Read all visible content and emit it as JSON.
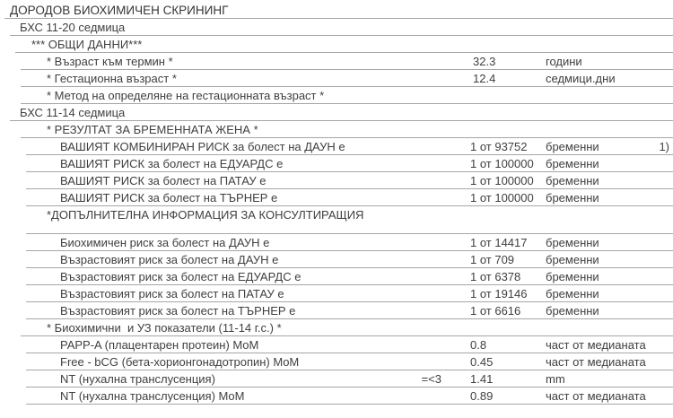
{
  "document": {
    "title": "ДОРОДОВ БИОХИМИЧЕН СКРИНИНГ",
    "language": "bg"
  },
  "rows": [
    {
      "label": "ДОРОДОВ БИОХИМИЧЕН СКРИНИНГ",
      "level": 0
    },
    {
      "label": "БХС 11-20 седмица",
      "level": 1
    },
    {
      "label": "*** ОБЩИ ДАННИ***",
      "level": 2
    },
    {
      "label": "* Възраст към термин *",
      "level": 3,
      "value": "32.3",
      "unit": "години"
    },
    {
      "label": "* Гестационна възраст *",
      "level": 3,
      "value": "12.4",
      "unit": "седмици.дни"
    },
    {
      "label": "* Метод на определяне на гестационната възраст *",
      "level": 3
    },
    {
      "label": "БХС 11-14 седмица",
      "level": 1
    },
    {
      "label": "* РЕЗУЛТАТ ЗА БРЕМЕННАТА ЖЕНА *",
      "level": 3
    },
    {
      "label": "ВАШИЯТ КОМБИНИРАН РИСК за болест на ДАУН е",
      "level": 4,
      "value": "1 от 93752",
      "unit": "бременни",
      "note": "1)"
    },
    {
      "label": "ВАШИЯТ РИСК за болест на ЕДУАРДС е",
      "level": 4,
      "value": "1 от 100000",
      "unit": "бременни"
    },
    {
      "label": "ВАШИЯТ РИСК за болест на ПАТАУ е",
      "level": 4,
      "value": "1 от 100000",
      "unit": "бременни"
    },
    {
      "label": "ВАШИЯТ РИСК за болест на ТЪРНЕР е",
      "level": 4,
      "value": "1 от 100000",
      "unit": "бременни"
    },
    {
      "label": "*ДОПЪЛНИТЕЛНА ИНФОРМАЦИЯ ЗА КОНСУЛТИРАЩИЯ",
      "level": 3
    },
    {
      "label": "",
      "level": 4
    },
    {
      "label": "Биохимичен риск за болест на ДАУН е",
      "level": 4,
      "value": "1 от 14417",
      "unit": "бременни"
    },
    {
      "label": "Възрастовият риск за болест на ДАУН е",
      "level": 4,
      "value": "1 от 709",
      "unit": "бременни"
    },
    {
      "label": "Възрастовият риск за болест на ЕДУАРДС е",
      "level": 4,
      "value": "1 от 6378",
      "unit": "бременни"
    },
    {
      "label": "Възрастовият риск за болест на ПАТАУ е",
      "level": 4,
      "value": "1 от 19146",
      "unit": "бременни"
    },
    {
      "label": "Възрастовият риск за болест на ТЪРНЕР е",
      "level": 4,
      "value": "1 от 6616",
      "unit": "бременни"
    },
    {
      "label": "* Биохимични  и УЗ показатели (11-14 г.с.) *",
      "level": 3
    },
    {
      "label": "PAPP-A (плацентарен протеин) MoM",
      "level": 4,
      "value": "0.8",
      "unit": "част от медианата"
    },
    {
      "label": "Free - bCG (бета-хорионгонадотропин) MoM",
      "level": 4,
      "value": "0.45",
      "unit": "част от медианата"
    },
    {
      "label": "NT (нухална транслусенция)",
      "level": 4,
      "ref": "=<3",
      "value": "1.41",
      "unit": "mm"
    },
    {
      "label": "NT (нухална транслусенция) MoM",
      "level": 4,
      "value": "0.89",
      "unit": "част от медианата"
    }
  ],
  "colors": {
    "background": "#ffffff",
    "text": "#3f3f3f",
    "separator": "#a6a6a6"
  }
}
